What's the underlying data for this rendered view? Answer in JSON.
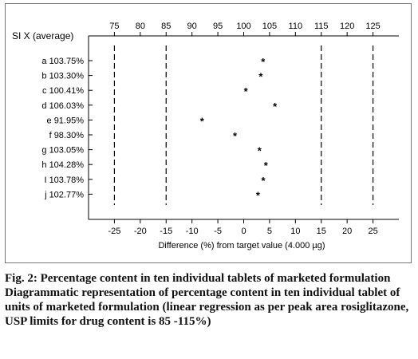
{
  "chart_data": {
    "type": "scatter",
    "y_axis_title": "SI X (average)",
    "xlabel": "Difference (%) from target value (4.000 µg)",
    "x_bottom": {
      "range": [
        -30,
        30
      ],
      "ticks": [
        -25,
        -20,
        -15,
        -10,
        -5,
        0,
        5,
        10,
        15,
        20,
        25
      ],
      "tick_labels": [
        "-25",
        "-20",
        "-15",
        "-10",
        "-5",
        "0",
        "5",
        "10",
        "15",
        "20",
        "25"
      ]
    },
    "x_top": {
      "range": [
        70,
        130
      ],
      "ticks": [
        75,
        80,
        85,
        90,
        95,
        100,
        105,
        110,
        115,
        120,
        125
      ],
      "tick_labels": [
        "75",
        "80",
        "85",
        "90",
        "95",
        "100",
        "105",
        "110",
        "115",
        "120",
        "125"
      ]
    },
    "limit_lines": [
      -25,
      -15,
      15,
      25
    ],
    "points": [
      {
        "label": "a 103.75%",
        "x": 3.75
      },
      {
        "label": "b 103.30%",
        "x": 3.3
      },
      {
        "label": "c 100.41%",
        "x": 0.41
      },
      {
        "label": "d 106.03%",
        "x": 6.03
      },
      {
        "label": "e 91.95%",
        "x": -8.05
      },
      {
        "label": "f 98.30%",
        "x": -1.7
      },
      {
        "label": "g 103.05%",
        "x": 3.05
      },
      {
        "label": "h 104.28%",
        "x": 4.28
      },
      {
        "label": "I 103.78%",
        "x": 3.78
      },
      {
        "label": "j 102.77%",
        "x": 2.77
      }
    ],
    "marker": "*",
    "grid": false,
    "colors": {
      "axis": "#000000",
      "marker": "#000000",
      "frame": "#777777"
    }
  },
  "caption": {
    "title": "Fig. 2: Percentage content in ten individual tablets of marketed formulation",
    "description": "Diagrammatic representation of percentage content in ten individual tablet of units of marketed formulation (linear regression as per peak area rosiglitazone, USP limits for drug content is 85 -115%)"
  }
}
